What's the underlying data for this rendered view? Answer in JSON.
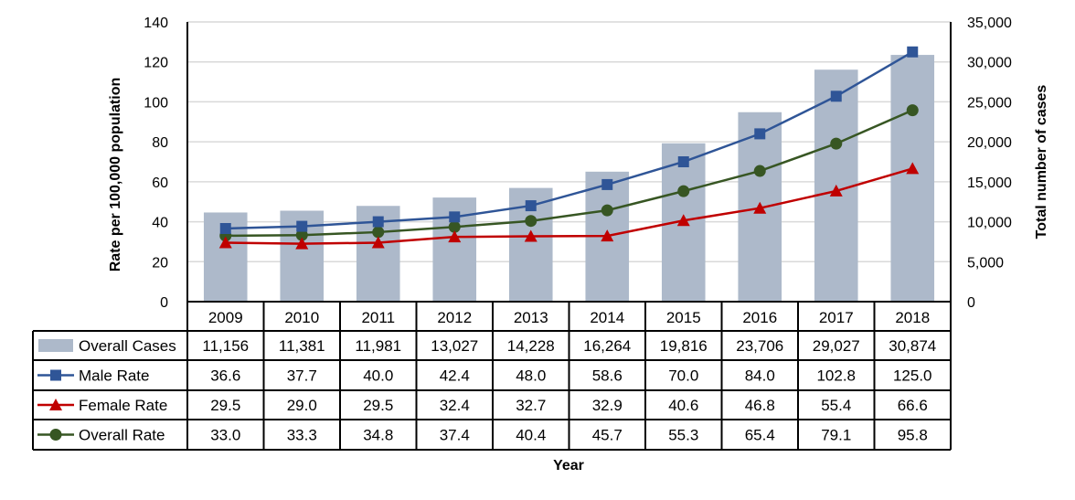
{
  "chart_data": {
    "type": "bar",
    "title": "",
    "xlabel": "Year",
    "ylabel": "Rate per 100,000 population",
    "y2label": "Total number of cases",
    "ylim": [
      0,
      140
    ],
    "y2lim": [
      0,
      35000
    ],
    "yticks": [
      "0",
      "20",
      "40",
      "60",
      "80",
      "100",
      "120",
      "140"
    ],
    "y2ticks": [
      "0",
      "5,000",
      "10,000",
      "15,000",
      "20,000",
      "25,000",
      "30,000",
      "35,000"
    ],
    "grid": true,
    "legend": "data-table-left",
    "categories": [
      "2009",
      "2010",
      "2011",
      "2012",
      "2013",
      "2014",
      "2015",
      "2016",
      "2017",
      "2018"
    ],
    "series": [
      {
        "name": "Overall Cases",
        "type": "bar",
        "axis": "right",
        "color": "#adb9ca",
        "values": [
          11156,
          11381,
          11981,
          13027,
          14228,
          16264,
          19816,
          23706,
          29027,
          30874
        ],
        "labels": [
          "11,156",
          "11,381",
          "11,981",
          "13,027",
          "14,228",
          "16,264",
          "19,816",
          "23,706",
          "29,027",
          "30,874"
        ]
      },
      {
        "name": "Male Rate",
        "type": "line",
        "marker": "square",
        "axis": "left",
        "color": "#2f5597",
        "values": [
          36.6,
          37.7,
          40.0,
          42.4,
          48.0,
          58.6,
          70.0,
          84.0,
          102.8,
          125.0
        ],
        "labels": [
          "36.6",
          "37.7",
          "40.0",
          "42.4",
          "48.0",
          "58.6",
          "70.0",
          "84.0",
          "102.8",
          "125.0"
        ]
      },
      {
        "name": "Female Rate",
        "type": "line",
        "marker": "triangle",
        "axis": "left",
        "color": "#c00000",
        "values": [
          29.5,
          29.0,
          29.5,
          32.4,
          32.7,
          32.9,
          40.6,
          46.8,
          55.4,
          66.6
        ],
        "labels": [
          "29.5",
          "29.0",
          "29.5",
          "32.4",
          "32.7",
          "32.9",
          "40.6",
          "46.8",
          "55.4",
          "66.6"
        ]
      },
      {
        "name": "Overall Rate",
        "type": "line",
        "marker": "circle",
        "axis": "left",
        "color": "#375623",
        "values": [
          33.0,
          33.3,
          34.8,
          37.4,
          40.4,
          45.7,
          55.3,
          65.4,
          79.1,
          95.8
        ],
        "labels": [
          "33.0",
          "33.3",
          "34.8",
          "37.4",
          "40.4",
          "45.7",
          "55.3",
          "65.4",
          "79.1",
          "95.8"
        ]
      }
    ]
  }
}
